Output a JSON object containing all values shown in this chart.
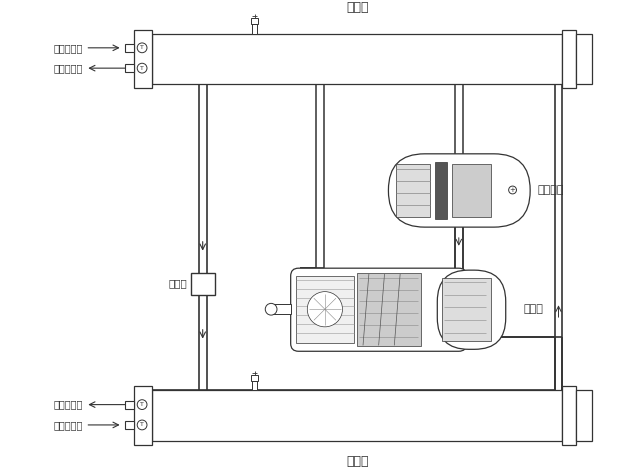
{
  "condenser_label": "冷凝器",
  "evaporator_label": "蒸发器",
  "oil_separator_label": "油分离器",
  "compressor_label": "压缩机",
  "expansion_valve_label": "节流阀",
  "cooling_water_out": "冷却水出水",
  "cooling_water_in": "冷却水进水",
  "chilled_water_in": "冷冻水进水",
  "chilled_water_out": "冷冻水出水",
  "bg_color": "#ffffff",
  "lc": "#333333",
  "gray1": "#aaaaaa",
  "gray2": "#888888",
  "gray3": "#cccccc",
  "gray4": "#555555",
  "gray5": "#dddddd",
  "gray6": "#999999"
}
